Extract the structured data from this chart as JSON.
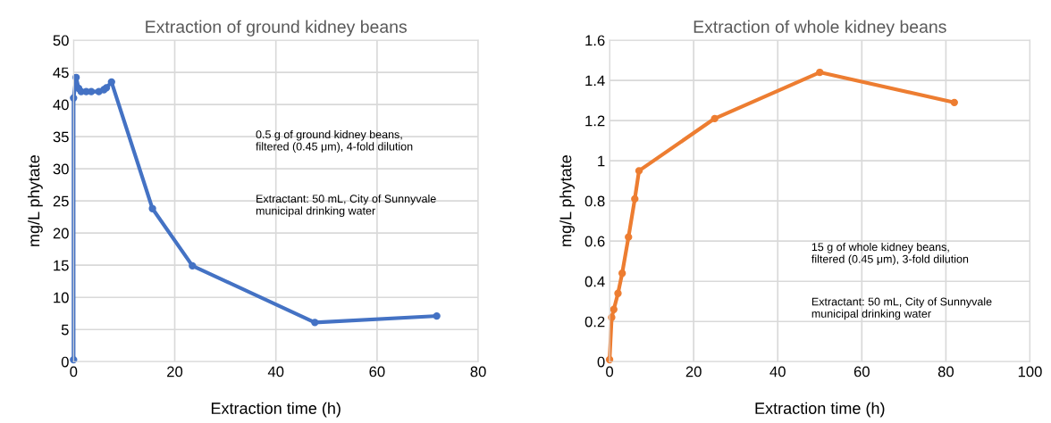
{
  "chart_data": [
    {
      "type": "line",
      "title": "Extraction of ground kidney beans",
      "xlabel": "Extraction time (h)",
      "ylabel": "mg/L phytate",
      "series": [
        {
          "color": "#4472c4",
          "x": [
            0,
            0,
            0.5,
            1,
            1.5,
            2.5,
            3.5,
            5,
            6,
            6.5,
            7.5,
            15.6,
            23.5,
            47.7,
            71.8
          ],
          "values": [
            0.3,
            41,
            44.2,
            42.5,
            42,
            42,
            42,
            42,
            42.3,
            42.6,
            43.5,
            23.8,
            14.9,
            6.1,
            7.1
          ]
        }
      ],
      "xlim": [
        0,
        80
      ],
      "xticks": [
        0,
        20,
        40,
        60,
        80
      ],
      "ylim": [
        0,
        50
      ],
      "yticks": [
        0,
        5,
        10,
        15,
        20,
        25,
        30,
        35,
        40,
        45,
        50
      ],
      "grid": true,
      "marker": "circle",
      "line_style": "solid",
      "annotations": [
        "0.5 g of ground kidney beans,\nfiltered (0.45 μm), 4-fold dilution",
        "Extractant: 50 mL, City of Sunnyvale\nmunicipal drinking water"
      ]
    },
    {
      "type": "line",
      "title": "Extraction of whole kidney beans",
      "xlabel": "Extraction time (h)",
      "ylabel": "mg/L phytate",
      "series": [
        {
          "color": "#ed7d31",
          "x": [
            0,
            0.5,
            1,
            2,
            3,
            4.5,
            6,
            7,
            25,
            50,
            82
          ],
          "values": [
            0.01,
            0.22,
            0.26,
            0.34,
            0.44,
            0.62,
            0.81,
            0.95,
            1.21,
            1.44,
            1.29
          ]
        }
      ],
      "xlim": [
        0,
        100
      ],
      "xticks": [
        0,
        20,
        40,
        60,
        80,
        100
      ],
      "ylim": [
        0,
        1.6
      ],
      "yticks": [
        0,
        0.2,
        0.4,
        0.6,
        0.8,
        1,
        1.2,
        1.4,
        1.6
      ],
      "grid": true,
      "marker": "circle",
      "line_style": "solid",
      "annotations": [
        "15 g of whole kidney beans,\nfiltered (0.45 μm), 3-fold dilution",
        "Extractant: 50 mL, City of Sunnyvale\nmunicipal drinking water"
      ]
    }
  ]
}
